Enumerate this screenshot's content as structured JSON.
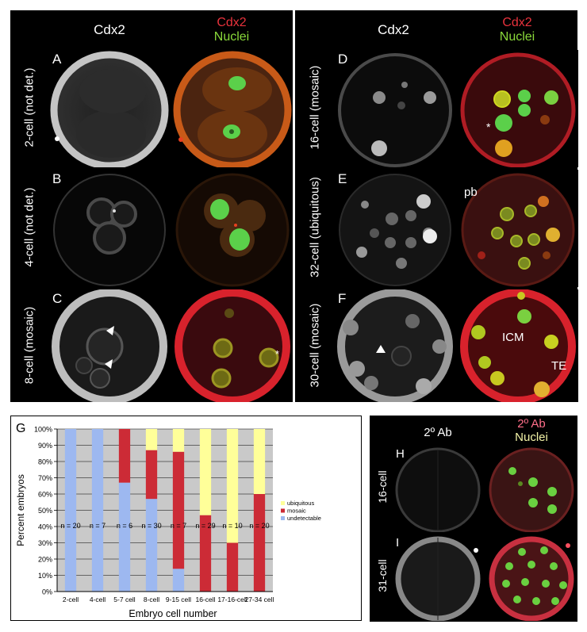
{
  "top_headers": {
    "col1": "Cdx2",
    "col2_line1": "Cdx2",
    "col2_line2": "Nuclei",
    "col3": "Cdx2",
    "col4_line1": "Cdx2",
    "col4_line2": "Nuclei"
  },
  "rows_left": [
    {
      "letter": "A",
      "label": "2-cell (not det.)"
    },
    {
      "letter": "B",
      "label": "4-cell (not det.)"
    },
    {
      "letter": "C",
      "label": "8-cell (mosaic)"
    }
  ],
  "rows_right": [
    {
      "letter": "D",
      "label": "16-cell (mosaic)"
    },
    {
      "letter": "E",
      "label": "32-cell (ubiquitous)"
    },
    {
      "letter": "F",
      "label": "30-cell (mosaic)"
    }
  ],
  "annotations": {
    "pb": "pb",
    "icm": "ICM",
    "te": "TE",
    "star": "*"
  },
  "control": {
    "hdr1": "2º Ab",
    "hdr2_line1": "2º Ab",
    "hdr2_line2": "Nuclei",
    "rows": [
      {
        "letter": "H",
        "label": "16-cell"
      },
      {
        "letter": "I",
        "label": "31-cell"
      }
    ]
  },
  "chart_data": {
    "type": "bar",
    "panel_letter": "G",
    "stacked": true,
    "categories": [
      "2-cell",
      "4-cell",
      "5-7 cell",
      "8-cell",
      "9-15 cell",
      "16-cell",
      "17-16-cell",
      "27-34 cell"
    ],
    "n_labels": [
      "n = 20",
      "n = 7",
      "n = 6",
      "n = 30",
      "n = 7",
      "n = 29",
      "n = 10",
      "n = 20"
    ],
    "series": [
      {
        "name": "undetectable",
        "color": "#9db8f0",
        "values": [
          100,
          100,
          67,
          57,
          14,
          0,
          0,
          0
        ]
      },
      {
        "name": "mosaic",
        "color": "#cc2b36",
        "values": [
          0,
          0,
          33,
          30,
          72,
          47,
          30,
          60
        ]
      },
      {
        "name": "ubiquitous",
        "color": "#ffff99",
        "values": [
          0,
          0,
          0,
          13,
          14,
          53,
          70,
          40
        ]
      }
    ],
    "legend_order": [
      "ubiquitous",
      "mosaic",
      "undetectable"
    ],
    "legend_position": "right",
    "ylabel": "Percent embryos",
    "xlabel": "Embryo cell number",
    "yticks": [
      "0%",
      "10%",
      "20%",
      "30%",
      "40%",
      "50%",
      "60%",
      "70%",
      "80%",
      "90%",
      "100%"
    ],
    "ylim": [
      0,
      100
    ],
    "grid": true,
    "plot_bg": "#c9c9c9"
  }
}
